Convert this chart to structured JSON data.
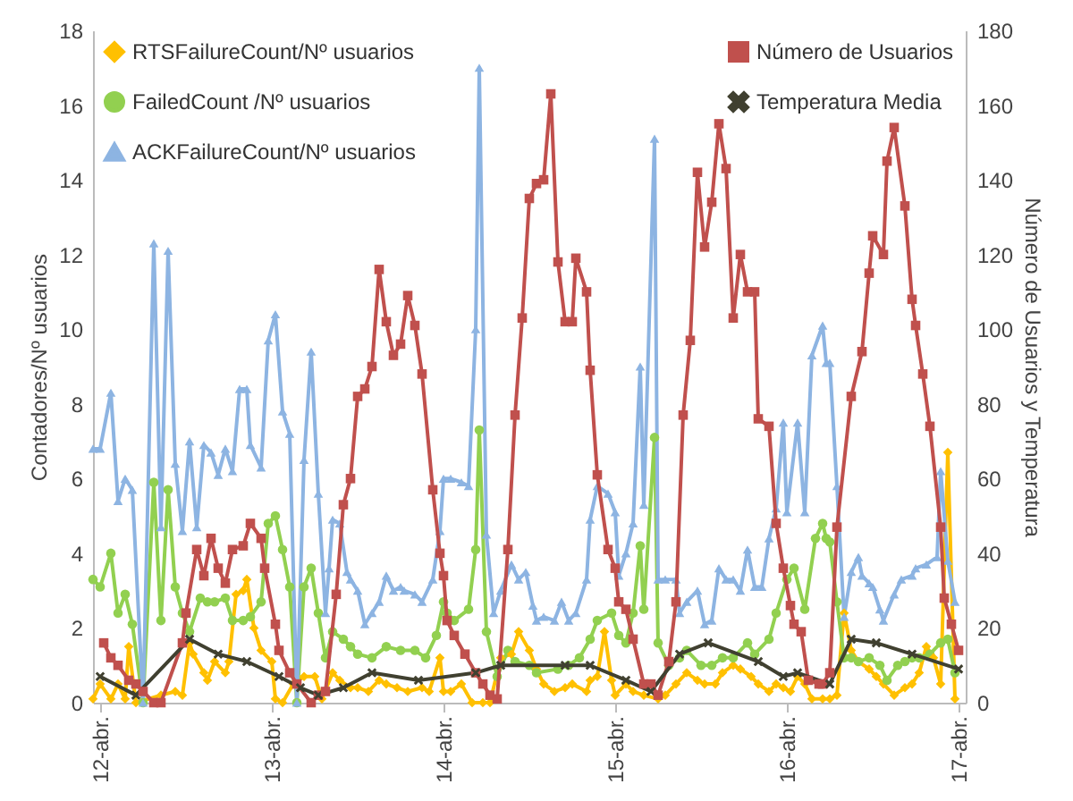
{
  "chart_data": {
    "type": "line",
    "ylabel": "Contadores/Nº usuarios",
    "y2label": "Número de Usuarios y Temperatura",
    "xlim": [
      "--04-11T23:00",
      "--04-17T01:00"
    ],
    "xticks": [
      {
        "value": "--04-12",
        "label": "12-abr."
      },
      {
        "value": "--04-13",
        "label": "13-abr."
      },
      {
        "value": "--04-14",
        "label": "14-abr."
      },
      {
        "value": "--04-15",
        "label": "15-abr."
      },
      {
        "value": "--04-16",
        "label": "16-abr."
      },
      {
        "value": "--04-17",
        "label": "17-abr."
      }
    ],
    "ylim": [
      0,
      18
    ],
    "yticks": [
      0,
      2,
      4,
      6,
      8,
      10,
      12,
      14,
      16,
      18
    ],
    "y2lim": [
      0,
      180
    ],
    "y2ticks": [
      0,
      20,
      40,
      60,
      80,
      100,
      120,
      140,
      160,
      180
    ],
    "legend": "top",
    "line_style": "solid",
    "series": [
      {
        "name": "RTSFailureCount/Nº usuarios",
        "color": "#ffc000",
        "marker": "diamond",
        "x": [
          "--04-11T23:00",
          "--04-12T00:00",
          "--04-12T01:30",
          "--04-12T02:30",
          "--04-12T03:30",
          "--04-12T04:00",
          "--04-12T05:00",
          "--04-12T08:30",
          "--04-12T10:30",
          "--04-12T11:30",
          "--04-12T12:30",
          "--04-12T13:00",
          "--04-12T14:30",
          "--04-12T15:00",
          "--04-12T16:00",
          "--04-12T17:30",
          "--04-12T18:00",
          "--04-12T19:00",
          "--04-12T20:00",
          "--04-12T20:30",
          "--04-12T21:30",
          "--04-12T22:30",
          "--04-13T00:00",
          "--04-13T00:30",
          "--04-13T01:30",
          "--04-13T03:00",
          "--04-13T04:30",
          "--04-13T06:00",
          "--04-13T07:00",
          "--04-13T08:30",
          "--04-13T09:30",
          "--04-13T11:00",
          "--04-13T12:00",
          "--04-13T13:30",
          "--04-13T15:00",
          "--04-13T16:00",
          "--04-13T17:30",
          "--04-13T19:00",
          "--04-13T21:00",
          "--04-13T22:00",
          "--04-13T23:30",
          "--04-14T00:00",
          "--04-14T01:00",
          "--04-14T02:30",
          "--04-14T04:00",
          "--04-14T05:30",
          "--04-14T06:30",
          "--04-14T08:00",
          "--04-14T09:30",
          "--04-14T10:30",
          "--04-14T12:00",
          "--04-14T13:00",
          "--04-14T14:00",
          "--04-14T15:30",
          "--04-14T17:00",
          "--04-14T18:00",
          "--04-14T20:00",
          "--04-14T20:30",
          "--04-14T21:30",
          "--04-14T22:30",
          "--04-14T23:30",
          "--04-15T00:00",
          "--04-15T01:30",
          "--04-15T02:30",
          "--04-15T04:00",
          "--04-15T06:00",
          "--04-15T07:00",
          "--04-15T08:30",
          "--04-15T10:00",
          "--04-15T11:30",
          "--04-15T12:30",
          "--04-15T14:00",
          "--04-15T15:00",
          "--04-15T16:30",
          "--04-15T17:30",
          "--04-15T19:00",
          "--04-15T20:00",
          "--04-15T21:30",
          "--04-15T22:30",
          "--04-15T23:30",
          "--04-16T00:30",
          "--04-16T01:30",
          "--04-16T02:30",
          "--04-16T03:30",
          "--04-16T05:00",
          "--04-16T06:00",
          "--04-16T07:00",
          "--04-16T08:00",
          "--04-16T09:00",
          "--04-16T10:00",
          "--04-16T11:30",
          "--04-16T12:30",
          "--04-16T13:30",
          "--04-16T15:00",
          "--04-16T16:30",
          "--04-16T17:30",
          "--04-16T18:30",
          "--04-16T19:30",
          "--04-16T20:30",
          "--04-16T21:30",
          "--04-16T22:30",
          "--04-16T23:30"
        ],
        "values": [
          0.1,
          0.5,
          0.1,
          0.5,
          0.1,
          1.5,
          0,
          0.2,
          0.3,
          0.2,
          1.6,
          1.3,
          0.8,
          0.6,
          1.1,
          0.8,
          1.1,
          2.9,
          3.0,
          3.3,
          2.0,
          1.4,
          1.1,
          0.1,
          0,
          0.5,
          0.7,
          0.7,
          0.1,
          0.8,
          0.6,
          0.4,
          0.4,
          0.3,
          0.6,
          0.5,
          0.4,
          0.3,
          0.4,
          0.3,
          1.2,
          0.3,
          0.3,
          0.5,
          0,
          0,
          0,
          1.2,
          1.3,
          1.9,
          1.4,
          0.9,
          0.5,
          0.3,
          0.4,
          0.5,
          0.3,
          0.6,
          0.7,
          1.9,
          0.6,
          0.2,
          0.5,
          0.3,
          0.2,
          0.1,
          0.2,
          0.5,
          0.8,
          0.6,
          0.5,
          0.5,
          0.8,
          1.0,
          0.9,
          0.7,
          0.5,
          0.3,
          0.5,
          0.4,
          0.3,
          0.7,
          0.5,
          0.1,
          0.1,
          0.1,
          0.2,
          2.4,
          1.4,
          1.1,
          0.9,
          0.7,
          0.5,
          0.2,
          0.4,
          0.5,
          0.8,
          1.5,
          1.2,
          0.5,
          6.7,
          0.1
        ]
      },
      {
        "name": "FailedCount /Nº usuarios",
        "color": "#92d050",
        "marker": "circle",
        "x": [
          "--04-11T23:00",
          "--04-12T00:00",
          "--04-12T01:30",
          "--04-12T02:30",
          "--04-12T03:30",
          "--04-12T04:30",
          "--04-12T06:00",
          "--04-12T07:30",
          "--04-12T08:30",
          "--04-12T09:30",
          "--04-12T10:30",
          "--04-12T11:30",
          "--04-12T12:30",
          "--04-12T14:00",
          "--04-12T15:00",
          "--04-12T16:00",
          "--04-12T17:30",
          "--04-12T18:30",
          "--04-12T20:00",
          "--04-12T21:00",
          "--04-12T22:30",
          "--04-12T23:30",
          "--04-13T00:30",
          "--04-13T01:30",
          "--04-13T02:30",
          "--04-13T03:30",
          "--04-13T04:30",
          "--04-13T05:30",
          "--04-13T06:30",
          "--04-13T07:30",
          "--04-13T08:30",
          "--04-13T10:00",
          "--04-13T11:00",
          "--04-13T12:00",
          "--04-13T14:00",
          "--04-13T16:00",
          "--04-13T18:00",
          "--04-13T20:00",
          "--04-13T21:30",
          "--04-13T23:00",
          "--04-14T00:00",
          "--04-14T00:30",
          "--04-14T01:30",
          "--04-14T03:30",
          "--04-14T04:30",
          "--04-14T05:00",
          "--04-14T06:00",
          "--04-14T07:30",
          "--04-14T09:00",
          "--04-14T10:00",
          "--04-14T12:00",
          "--04-14T13:00",
          "--04-14T16:00",
          "--04-14T17:30",
          "--04-14T19:00",
          "--04-14T20:30",
          "--04-14T21:30",
          "--04-14T23:30",
          "--04-15T00:30",
          "--04-15T01:30",
          "--04-15T02:30",
          "--04-15T03:30",
          "--04-15T04:00",
          "--04-15T05:30",
          "--04-15T06:00",
          "--04-15T07:30",
          "--04-15T09:00",
          "--04-15T10:00",
          "--04-15T12:00",
          "--04-15T13:30",
          "--04-15T15:00",
          "--04-15T16:30",
          "--04-15T18:30",
          "--04-15T19:30",
          "--04-15T21:30",
          "--04-15T22:30",
          "--04-16T00:00",
          "--04-16T01:00",
          "--04-16T02:30",
          "--04-16T04:00",
          "--04-16T05:00",
          "--04-16T05:30",
          "--04-16T06:00",
          "--04-16T07:00",
          "--04-16T08:00",
          "--04-16T09:00",
          "--04-16T10:00",
          "--04-16T11:30",
          "--04-16T13:00",
          "--04-16T14:00",
          "--04-16T15:30",
          "--04-16T16:30",
          "--04-16T17:30",
          "--04-16T18:30",
          "--04-16T20:00",
          "--04-16T21:30",
          "--04-16T22:30",
          "--04-16T23:30"
        ],
        "values": [
          3.3,
          3.1,
          4.0,
          2.4,
          2.9,
          2.1,
          0,
          5.9,
          2.2,
          5.7,
          3.1,
          2.4,
          1.9,
          2.8,
          2.7,
          2.7,
          2.8,
          2.2,
          2.2,
          2.3,
          2.7,
          4.8,
          5.0,
          4.1,
          3.1,
          0,
          3.1,
          3.6,
          2.4,
          1.2,
          1.9,
          1.7,
          1.5,
          1.3,
          1.2,
          1.5,
          1.4,
          1.4,
          1.2,
          1.8,
          2.7,
          2.4,
          2.2,
          2.5,
          4.1,
          7.3,
          1.9,
          0.7,
          1.4,
          1.1,
          1.0,
          0.8,
          0.9,
          1.0,
          1.2,
          1.7,
          2.2,
          2.4,
          1.8,
          1.6,
          2.4,
          4.2,
          2.5,
          7.1,
          1.6,
          1.0,
          1.2,
          1.4,
          1.0,
          1.0,
          1.2,
          1.2,
          1.6,
          1.3,
          1.7,
          2.4,
          3.3,
          3.6,
          2.5,
          4.4,
          4.8,
          4.4,
          4.3,
          2.7,
          1.2,
          1.2,
          1.1,
          1.2,
          1.0,
          0.6,
          1.0,
          1.1,
          1.2,
          1.2,
          1.3,
          1.6,
          1.7,
          0.8
        ]
      },
      {
        "name": "ACKFailureCount/Nº usuarios",
        "color": "#8db4e2",
        "marker": "triangle",
        "x": [
          "--04-11T23:00",
          "--04-12T00:00",
          "--04-12T01:30",
          "--04-12T02:30",
          "--04-12T03:30",
          "--04-12T04:30",
          "--04-12T06:00",
          "--04-12T07:30",
          "--04-12T08:30",
          "--04-12T09:30",
          "--04-12T10:30",
          "--04-12T11:30",
          "--04-12T12:30",
          "--04-12T13:30",
          "--04-12T14:30",
          "--04-12T15:30",
          "--04-12T16:30",
          "--04-12T17:30",
          "--04-12T18:30",
          "--04-12T19:30",
          "--04-12T20:30",
          "--04-12T21:00",
          "--04-12T22:30",
          "--04-12T23:30",
          "--04-13T00:30",
          "--04-13T01:30",
          "--04-13T02:30",
          "--04-13T03:30",
          "--04-13T04:30",
          "--04-13T05:30",
          "--04-13T06:30",
          "--04-13T07:30",
          "--04-13T08:00",
          "--04-13T08:30",
          "--04-13T09:30",
          "--04-13T10:30",
          "--04-13T11:00",
          "--04-13T12:00",
          "--04-13T13:00",
          "--04-13T14:00",
          "--04-13T15:00",
          "--04-13T16:00",
          "--04-13T17:00",
          "--04-13T18:00",
          "--04-13T18:30",
          "--04-13T20:00",
          "--04-13T21:00",
          "--04-13T22:30",
          "--04-13T23:30",
          "--04-14T00:00",
          "--04-14T01:00",
          "--04-14T02:30",
          "--04-14T03:30",
          "--04-14T04:30",
          "--04-14T05:00",
          "--04-14T06:00",
          "--04-14T07:00",
          "--04-14T08:00",
          "--04-14T09:30",
          "--04-14T10:30",
          "--04-14T11:30",
          "--04-14T12:30",
          "--04-14T13:00",
          "--04-14T14:00",
          "--04-14T15:30",
          "--04-14T16:30",
          "--04-14T17:30",
          "--04-14T18:30",
          "--04-14T20:00",
          "--04-14T20:30",
          "--04-14T21:30",
          "--04-14T23:00",
          "--04-15T00:00",
          "--04-15T00:30",
          "--04-15T01:30",
          "--04-15T02:30",
          "--04-15T03:30",
          "--04-15T04:00",
          "--04-15T05:30",
          "--04-15T06:00",
          "--04-15T07:00",
          "--04-15T08:30",
          "--04-15T09:00",
          "--04-15T10:00",
          "--04-15T11:30",
          "--04-15T12:30",
          "--04-15T13:30",
          "--04-15T14:30",
          "--04-15T15:30",
          "--04-15T16:30",
          "--04-15T17:30",
          "--04-15T18:30",
          "--04-15T19:30",
          "--04-15T20:30",
          "--04-15T21:30",
          "--04-15T22:30",
          "--04-15T23:30",
          "--04-16T00:00",
          "--04-16T01:30",
          "--04-16T02:30",
          "--04-16T03:30",
          "--04-16T05:00",
          "--04-16T05:30",
          "--04-16T06:00",
          "--04-16T07:00",
          "--04-16T08:00",
          "--04-16T09:00",
          "--04-16T10:00",
          "--04-16T10:30",
          "--04-16T11:30",
          "--04-16T12:00",
          "--04-16T13:00",
          "--04-16T13:30",
          "--04-16T15:00",
          "--04-16T16:00",
          "--04-16T17:30",
          "--04-16T18:00",
          "--04-16T19:30",
          "--04-16T21:00",
          "--04-16T21:30",
          "--04-16T22:30",
          "--04-16T23:30"
        ],
        "values": [
          6.8,
          6.8,
          8.3,
          5.4,
          6.0,
          5.7,
          0,
          12.3,
          4.7,
          12.1,
          6.4,
          4.6,
          7.0,
          4.7,
          6.9,
          6.7,
          6.1,
          6.8,
          6.2,
          8.4,
          8.4,
          6.9,
          6.3,
          9.7,
          10.4,
          7.8,
          7.2,
          0,
          6.5,
          9.4,
          5.6,
          2.4,
          3.6,
          4.9,
          4.8,
          3.5,
          3.3,
          3.0,
          2.1,
          2.4,
          2.7,
          3.4,
          3.0,
          3.1,
          3.0,
          2.9,
          2.7,
          3.3,
          4.6,
          6.0,
          6.0,
          5.9,
          5.8,
          10.0,
          17.0,
          4.5,
          2.4,
          3.0,
          3.7,
          3.3,
          3.5,
          2.6,
          2.2,
          2.3,
          2.2,
          2.7,
          2.2,
          2.4,
          3.3,
          4.9,
          5.8,
          5.6,
          5.1,
          3.4,
          4.0,
          4.8,
          9.0,
          5.3,
          15.1,
          3.3,
          3.3,
          3.3,
          2.4,
          2.7,
          3.0,
          2.1,
          2.2,
          3.6,
          3.3,
          3.3,
          3.0,
          4.1,
          3.1,
          3.1,
          4.4,
          5.2,
          7.5,
          5.1,
          7.5,
          5.1,
          9.3,
          10.1,
          9.1,
          9.1,
          5.8,
          2.3,
          3.5,
          3.9,
          3.4,
          3.2,
          3.1,
          2.5,
          2.2,
          2.9,
          3.3,
          3.4,
          3.6,
          3.7,
          3.9,
          6.2,
          3.8,
          2.7
        ]
      },
      {
        "name": "Número de Usuarios",
        "color": "#c0504d",
        "marker": "square",
        "axis": "y2",
        "x": [
          "--04-12T00:30",
          "--04-12T01:30",
          "--04-12T02:30",
          "--04-12T04:00",
          "--04-12T05:00",
          "--04-12T06:00",
          "--04-12T07:30",
          "--04-12T08:30",
          "--04-12T11:30",
          "--04-12T12:00",
          "--04-12T13:30",
          "--04-12T14:30",
          "--04-12T15:30",
          "--04-12T16:30",
          "--04-12T17:30",
          "--04-12T18:30",
          "--04-12T20:00",
          "--04-12T21:00",
          "--04-12T22:30",
          "--04-12T23:00",
          "--04-13T00:30",
          "--04-13T01:00",
          "--04-13T02:30",
          "--04-13T03:30",
          "--04-13T05:30",
          "--04-13T06:30",
          "--04-13T07:30",
          "--04-13T09:00",
          "--04-13T10:00",
          "--04-13T11:00",
          "--04-13T12:00",
          "--04-13T13:00",
          "--04-13T14:00",
          "--04-13T15:00",
          "--04-13T16:00",
          "--04-13T17:00",
          "--04-13T18:00",
          "--04-13T19:00",
          "--04-13T20:00",
          "--04-13T21:00",
          "--04-13T22:30",
          "--04-13T23:30",
          "--04-14T00:00",
          "--04-14T00:30",
          "--04-14T01:30",
          "--04-14T03:00",
          "--04-14T04:30",
          "--04-14T05:30",
          "--04-14T06:30",
          "--04-14T07:30",
          "--04-14T09:00",
          "--04-14T10:00",
          "--04-14T11:00",
          "--04-14T12:00",
          "--04-14T13:00",
          "--04-14T14:00",
          "--04-14T15:00",
          "--04-14T16:00",
          "--04-14T17:00",
          "--04-14T18:00",
          "--04-14T18:30",
          "--04-14T20:00",
          "--04-14T20:30",
          "--04-14T21:30",
          "--04-14T23:00",
          "--04-15T00:00",
          "--04-15T00:30",
          "--04-15T01:30",
          "--04-15T02:30",
          "--04-15T04:00",
          "--04-15T05:00",
          "--04-15T06:00",
          "--04-15T07:30",
          "--04-15T08:30",
          "--04-15T09:30",
          "--04-15T10:30",
          "--04-15T11:30",
          "--04-15T12:30",
          "--04-15T13:30",
          "--04-15T14:30",
          "--04-15T15:30",
          "--04-15T16:30",
          "--04-15T17:30",
          "--04-15T18:30",
          "--04-15T19:30",
          "--04-15T20:00",
          "--04-15T21:30",
          "--04-15T22:30",
          "--04-15T23:30",
          "--04-16T00:30",
          "--04-16T01:00",
          "--04-16T02:00",
          "--04-16T03:00",
          "--04-16T04:30",
          "--04-16T05:00",
          "--04-16T06:00",
          "--04-16T07:00",
          "--04-16T09:00",
          "--04-16T10:30",
          "--04-16T11:30",
          "--04-16T12:00",
          "--04-16T13:30",
          "--04-16T14:00",
          "--04-16T15:00",
          "--04-16T16:30",
          "--04-16T17:30",
          "--04-16T18:00",
          "--04-16T19:00",
          "--04-16T20:00",
          "--04-16T21:30",
          "--04-16T22:00",
          "--04-16T23:00",
          "--04-17T00:00"
        ],
        "values": [
          16,
          12,
          10,
          6,
          5,
          3,
          0,
          0,
          16,
          24,
          41,
          34,
          44,
          36,
          32,
          41,
          42,
          48,
          44,
          36,
          21,
          14,
          8,
          5,
          0,
          2,
          3,
          29,
          53,
          60,
          82,
          84,
          90,
          116,
          102,
          93,
          96,
          109,
          101,
          88,
          57,
          40,
          34,
          22,
          18,
          13,
          8,
          5,
          2,
          1,
          41,
          77,
          103,
          135,
          139,
          140,
          163,
          118,
          102,
          102,
          119,
          110,
          89,
          61,
          41,
          36,
          27,
          25,
          17,
          5,
          5,
          2,
          11,
          27,
          77,
          97,
          142,
          122,
          134,
          155,
          143,
          103,
          120,
          110,
          110,
          76,
          74,
          48,
          36,
          26,
          21,
          19,
          6,
          5,
          5,
          8,
          47,
          82,
          94,
          115,
          125,
          120,
          145,
          154,
          133,
          108,
          101,
          88,
          74,
          47,
          28,
          21,
          14
        ]
      },
      {
        "name": "Temperatura Media",
        "color": "#404030",
        "marker": "cross",
        "axis": "y2",
        "x": [
          "--04-12T00:00",
          "--04-12T05:00",
          "--04-12T12:30",
          "--04-12T16:30",
          "--04-12T20:30",
          "--04-13T01:00",
          "--04-13T04:00",
          "--04-13T06:30",
          "--04-13T10:00",
          "--04-13T14:00",
          "--04-13T20:30",
          "--04-14T04:30",
          "--04-14T08:00",
          "--04-14T17:00",
          "--04-14T20:30",
          "--04-15T01:30",
          "--04-15T05:00",
          "--04-15T09:00",
          "--04-15T13:00",
          "--04-15T20:00",
          "--04-15T23:30",
          "--04-16T01:30",
          "--04-16T06:00",
          "--04-16T09:00",
          "--04-16T12:30",
          "--04-16T17:30",
          "--04-17T00:00"
        ],
        "values": [
          7,
          2,
          17,
          13,
          11,
          7,
          4,
          2,
          4,
          8,
          6,
          8,
          10,
          10,
          10,
          6,
          3,
          13,
          16,
          11,
          7,
          8,
          5,
          17,
          16,
          13,
          9
        ]
      }
    ]
  }
}
